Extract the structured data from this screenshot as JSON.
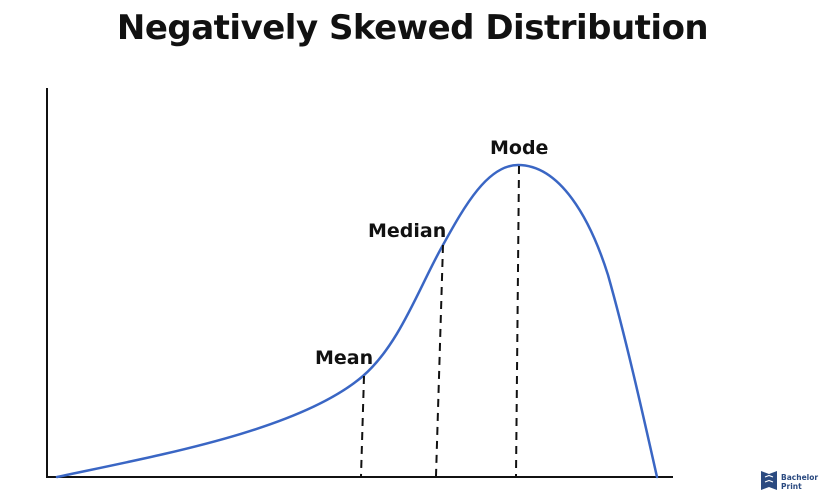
{
  "title": "Negatively Skewed Distribution",
  "labels": {
    "mean": "Mean",
    "median": "Median",
    "mode": "Mode"
  },
  "logo": {
    "line1": "Bachelor",
    "line2": "Print"
  },
  "colors": {
    "curve": "#3a66c4",
    "axis": "#111111",
    "dashed": "#111111",
    "logo": "#2b4a80"
  }
}
